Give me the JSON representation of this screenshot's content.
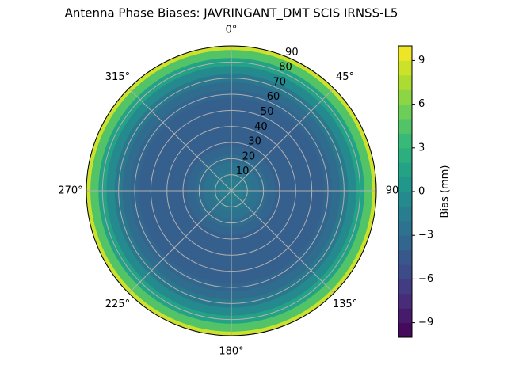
{
  "chart_data": {
    "type": "polar-contour",
    "title": "Antenna Phase Biases: JAVRINGANT_DMT  SCIS IRNSS-L5",
    "x": [
      0,
      5,
      10,
      15,
      20,
      25,
      30,
      35,
      40,
      45,
      50,
      55,
      60,
      65,
      70,
      75,
      80,
      85,
      90
    ],
    "values": [
      -1,
      -1.5,
      -2,
      -2.5,
      -3,
      -3.5,
      -4,
      -4,
      -4,
      -4,
      -4,
      -4,
      -3.5,
      -3,
      -2,
      -0.5,
      1.5,
      4.5,
      8.5
    ],
    "xlim": [
      0,
      90
    ],
    "rticks": [
      10,
      20,
      30,
      40,
      50,
      60,
      70,
      80,
      90
    ],
    "thetaticks": [
      {
        "value": 0,
        "label": "0°"
      },
      {
        "value": 45,
        "label": "45°"
      },
      {
        "value": 90,
        "label": "90"
      },
      {
        "value": 135,
        "label": "135°"
      },
      {
        "value": 180,
        "label": "180°"
      },
      {
        "value": 225,
        "label": "225°"
      },
      {
        "value": 270,
        "label": "270°"
      },
      {
        "value": 315,
        "label": "315°"
      }
    ],
    "colormap": "viridis",
    "clim": [
      -10,
      10
    ],
    "cticks": [
      {
        "value": -9,
        "label": "−9"
      },
      {
        "value": -6,
        "label": "−6"
      },
      {
        "value": -3,
        "label": "−3"
      },
      0,
      3,
      6,
      9
    ],
    "colorbar_label": "Bias (mm)",
    "grid": true
  }
}
